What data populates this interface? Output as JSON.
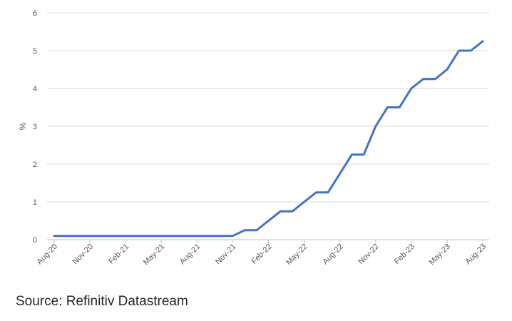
{
  "chart_data": {
    "type": "line",
    "title": "",
    "ylabel": "%",
    "xlabel": "",
    "ylim": [
      0,
      6
    ],
    "yticks": [
      0,
      1,
      2,
      3,
      4,
      5,
      6
    ],
    "xticks": [
      "Aug-20",
      "Nov-20",
      "Feb-21",
      "May-21",
      "Aug-21",
      "Nov-21",
      "Feb-22",
      "May-22",
      "Aug-22",
      "Nov-22",
      "Feb-23",
      "May-23",
      "Aug-23"
    ],
    "grid": true,
    "legend": "none",
    "series": [
      {
        "color": "#4472c4",
        "x": [
          "Aug-20",
          "Sep-20",
          "Oct-20",
          "Nov-20",
          "Dec-20",
          "Jan-21",
          "Feb-21",
          "Mar-21",
          "Apr-21",
          "May-21",
          "Jun-21",
          "Jul-21",
          "Aug-21",
          "Sep-21",
          "Oct-21",
          "Nov-21",
          "Dec-21",
          "Jan-22",
          "Feb-22",
          "Mar-22",
          "Apr-22",
          "May-22",
          "Jun-22",
          "Jul-22",
          "Aug-22",
          "Sep-22",
          "Oct-22",
          "Nov-22",
          "Dec-22",
          "Jan-23",
          "Feb-23",
          "Mar-23",
          "Apr-23",
          "May-23",
          "Jun-23",
          "Jul-23",
          "Aug-23"
        ],
        "values": [
          0.1,
          0.1,
          0.1,
          0.1,
          0.1,
          0.1,
          0.1,
          0.1,
          0.1,
          0.1,
          0.1,
          0.1,
          0.1,
          0.1,
          0.1,
          0.1,
          0.25,
          0.25,
          0.5,
          0.75,
          0.75,
          1.0,
          1.25,
          1.25,
          1.75,
          2.25,
          2.25,
          3.0,
          3.5,
          3.5,
          4.0,
          4.25,
          4.25,
          4.5,
          5.0,
          5.0,
          5.25
        ]
      }
    ]
  },
  "source_note": "Source: Refinitiv Datastream"
}
